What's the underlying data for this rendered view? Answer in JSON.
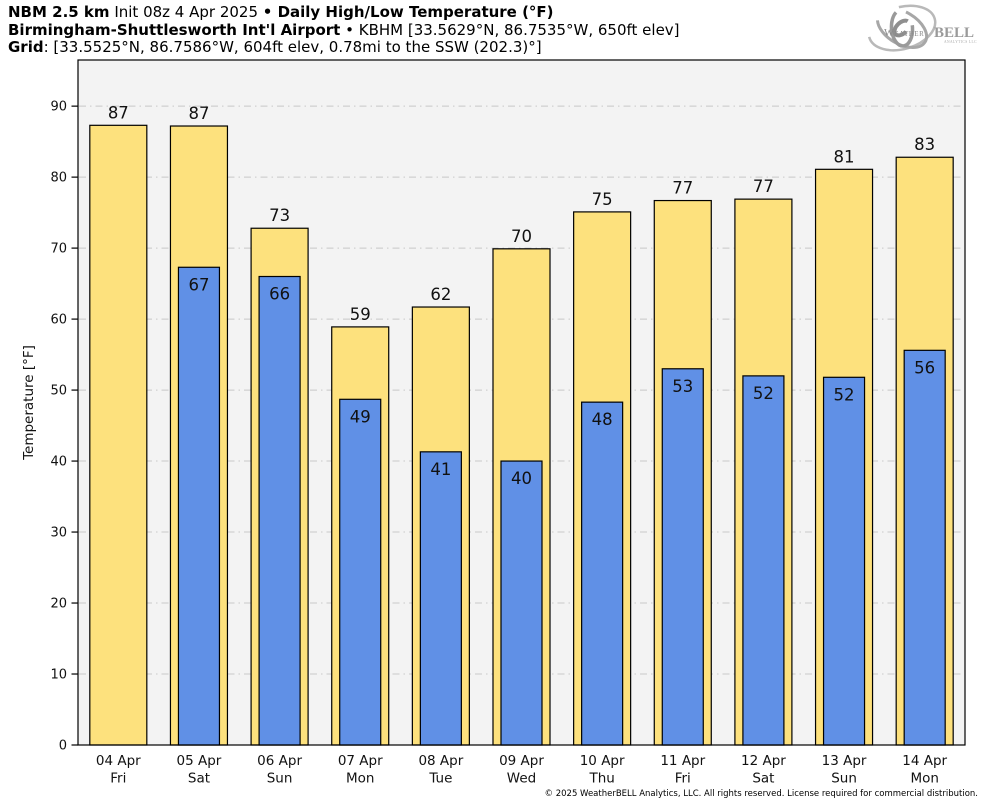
{
  "header": {
    "line1": {
      "model": "NBM 2.5 km",
      "init": " Init 08z 4 Apr 2025 ",
      "title": "• Daily High/Low Temperature (°F)"
    },
    "line2": {
      "station": "Birmingham-Shuttlesworth Int'l Airport",
      "rest": " • KBHM [33.5629°N, 86.7535°W, 650ft elev]"
    },
    "line3": {
      "label": "Grid",
      "rest": ": [33.5525°N, 86.7586°W, 604ft elev, 0.78mi to the SSW (202.3)°]"
    }
  },
  "logo": {
    "word1": "Weather",
    "word2": "BELL",
    "sub": "ANALYTICS LLC"
  },
  "footer": {
    "copyright": "© 2025 WeatherBELL Analytics, LLC. All rights reserved. License required for commercial distribution."
  },
  "colors": {
    "high": "#FDE17D",
    "low": "#6090E6",
    "plot_bg": "#F3F3F3",
    "grid": "#C8C8C8",
    "bar_border": "#000000"
  },
  "chart_data": {
    "type": "bar",
    "title": "NBM 2.5 km Daily High/Low Temperature (°F) — Birmingham-Shuttlesworth Int'l Airport (KBHM)",
    "ylabel": "Temperature [°F]",
    "xlabel": "",
    "ylim": [
      0,
      96.5
    ],
    "yticks": [
      0,
      10,
      20,
      30,
      40,
      50,
      60,
      70,
      80,
      90
    ],
    "grid": "horizontal dash-dot",
    "legend": "none",
    "categories": [
      {
        "date": "04 Apr",
        "day": "Fri"
      },
      {
        "date": "05 Apr",
        "day": "Sat"
      },
      {
        "date": "06 Apr",
        "day": "Sun"
      },
      {
        "date": "07 Apr",
        "day": "Mon"
      },
      {
        "date": "08 Apr",
        "day": "Tue"
      },
      {
        "date": "09 Apr",
        "day": "Wed"
      },
      {
        "date": "10 Apr",
        "day": "Thu"
      },
      {
        "date": "11 Apr",
        "day": "Fri"
      },
      {
        "date": "12 Apr",
        "day": "Sat"
      },
      {
        "date": "13 Apr",
        "day": "Sun"
      },
      {
        "date": "14 Apr",
        "day": "Mon"
      }
    ],
    "series": [
      {
        "name": "High",
        "color": "#FDE17D",
        "values": [
          87,
          87,
          73,
          59,
          62,
          70,
          75,
          77,
          77,
          81,
          83
        ],
        "plotted": [
          87.3,
          87.2,
          72.8,
          58.9,
          61.7,
          69.9,
          75.1,
          76.7,
          76.9,
          81.1,
          82.8
        ]
      },
      {
        "name": "Low",
        "color": "#6090E6",
        "values": [
          null,
          67,
          66,
          49,
          41,
          40,
          48,
          53,
          52,
          52,
          56
        ],
        "plotted": [
          null,
          67.3,
          66.0,
          48.7,
          41.3,
          40.0,
          48.3,
          53.0,
          52.0,
          51.8,
          55.6
        ]
      }
    ]
  }
}
